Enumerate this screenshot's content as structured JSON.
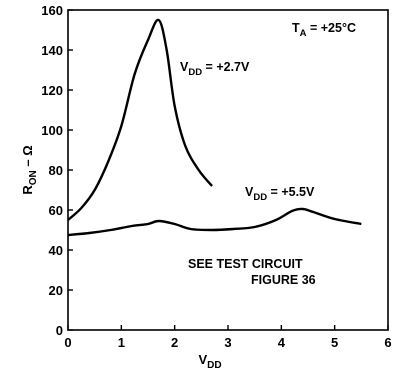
{
  "chart_data": {
    "type": "line",
    "xlim": [
      0,
      6
    ],
    "ylim": [
      0,
      160
    ],
    "x_ticks": [
      0,
      1,
      2,
      3,
      4,
      5,
      6
    ],
    "y_ticks": [
      0,
      20,
      40,
      60,
      80,
      100,
      120,
      140,
      160
    ],
    "x_tick_labels": [
      "0",
      "1",
      "2",
      "3",
      "4",
      "5",
      "6"
    ],
    "y_tick_labels": [
      "0",
      "20",
      "40",
      "60",
      "80",
      "100",
      "120",
      "140",
      "160"
    ],
    "xlabel": {
      "main": "V",
      "sub": "DD"
    },
    "ylabel": {
      "main": "R",
      "sub": "ON",
      "tail": " – Ω"
    },
    "grid": false,
    "series": [
      {
        "name": {
          "main": "V",
          "sub": "DD",
          "tail": " = +2.7V"
        },
        "x": [
          0.0,
          0.25,
          0.5,
          0.75,
          1.0,
          1.25,
          1.5,
          1.7,
          1.85,
          2.0,
          2.2,
          2.45,
          2.7
        ],
        "y": [
          55,
          61,
          70,
          84,
          102,
          128,
          145,
          155,
          140,
          112,
          92,
          80,
          72
        ]
      },
      {
        "name": {
          "main": "V",
          "sub": "DD",
          "tail": " = +5.5V"
        },
        "x": [
          0.0,
          0.4,
          0.8,
          1.2,
          1.5,
          1.7,
          2.0,
          2.3,
          2.7,
          3.1,
          3.5,
          3.9,
          4.2,
          4.4,
          4.6,
          5.0,
          5.5
        ],
        "y": [
          47.5,
          48.5,
          50,
          52,
          53,
          54.5,
          53,
          50.5,
          50,
          50.5,
          51.5,
          55,
          59.5,
          60.5,
          59,
          55.5,
          53
        ]
      }
    ],
    "annotations": {
      "temperature": {
        "main": "T",
        "sub": "A",
        "tail": " = +25°C"
      },
      "test_circuit_line1": "SEE TEST CIRCUIT",
      "test_circuit_line2": "FIGURE 36"
    }
  }
}
